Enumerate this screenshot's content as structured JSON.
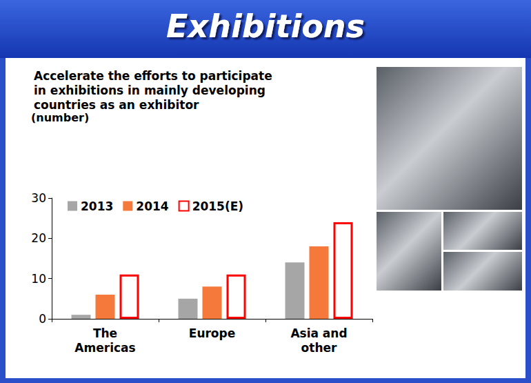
{
  "chart_data": {
    "type": "bar",
    "title": "Exhibitions",
    "subtitle": "Accelerate the efforts to participate in exhibitions in mainly developing countries as an exhibitor",
    "y_label": "(number)",
    "categories": [
      "The Americas",
      "Europe",
      "Asia and other"
    ],
    "series": [
      {
        "name": "2013",
        "color": "#a6a6a6",
        "values": [
          1,
          5,
          14
        ]
      },
      {
        "name": "2014",
        "color": "#f4793b",
        "values": [
          6,
          8,
          18
        ]
      },
      {
        "name": "2015(E)",
        "color": "#ff0000",
        "marker": "outline",
        "values": [
          11,
          11,
          24
        ]
      }
    ],
    "ylim": [
      0,
      30
    ],
    "yticks": [
      0,
      10,
      20,
      30
    ],
    "grid": false,
    "legend": "top-left"
  }
}
